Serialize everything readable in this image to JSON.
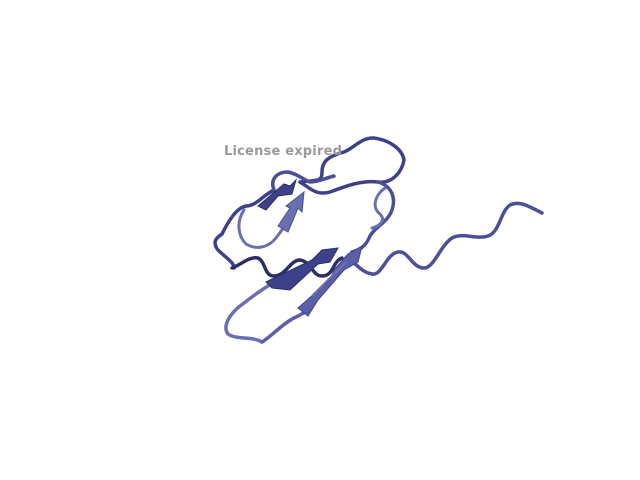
{
  "watermark": {
    "text": "License expired"
  },
  "render": {
    "subject": "protein-ribbon-cartoon",
    "colors": {
      "background": "#ffffff",
      "ribbon_light": "#6a6fb0",
      "ribbon_mid": "#4b4f97",
      "ribbon_dark": "#2c2f66",
      "watermark": "#9a9a9a"
    }
  }
}
